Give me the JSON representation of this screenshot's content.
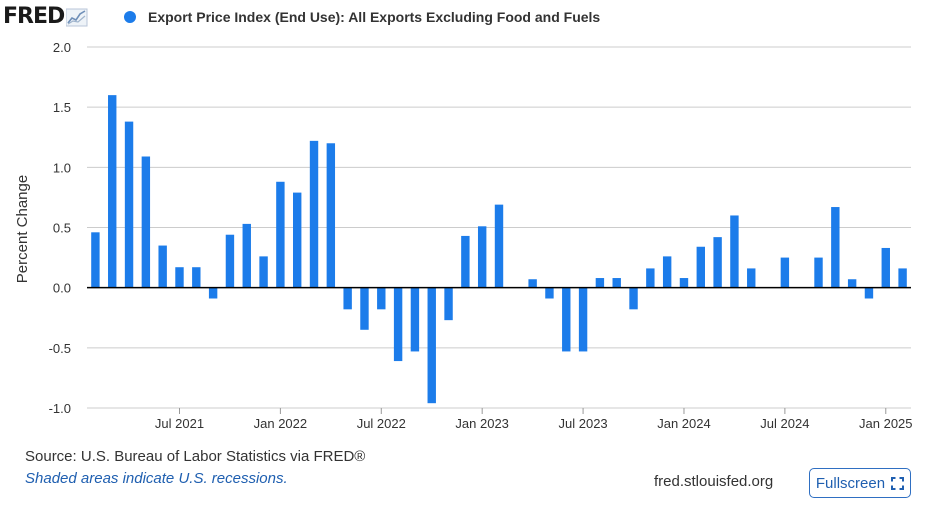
{
  "header": {
    "logo": "FRED",
    "logo_icon": "fred-trendline-icon",
    "series_label": "Export Price Index (End Use): All Exports Excluding Food and Fuels"
  },
  "colors": {
    "bar": "#1c7cea",
    "grid": "#cccccc",
    "plot_bg": "#ffffff",
    "zero_line": "#000000"
  },
  "chart_data": {
    "type": "bar",
    "title": "",
    "xlabel": "",
    "ylabel": "Percent Change",
    "ylim": [
      -1.0,
      2.0
    ],
    "yticks": [
      -1.0,
      -0.5,
      0.0,
      0.5,
      1.0,
      1.5,
      2.0
    ],
    "ytick_labels": [
      "-1.0",
      "-0.5",
      "0.0",
      "0.5",
      "1.0",
      "1.5",
      "2.0"
    ],
    "xticks": [
      {
        "label": "Jul 2021",
        "month": "2021-07"
      },
      {
        "label": "Jan 2022",
        "month": "2022-01"
      },
      {
        "label": "Jul 2022",
        "month": "2022-07"
      },
      {
        "label": "Jan 2023",
        "month": "2023-01"
      },
      {
        "label": "Jul 2023",
        "month": "2023-07"
      },
      {
        "label": "Jan 2024",
        "month": "2024-01"
      },
      {
        "label": "Jul 2024",
        "month": "2024-07"
      },
      {
        "label": "Jan 2025",
        "month": "2025-01"
      }
    ],
    "grid": true,
    "series": [
      {
        "name": "Export Price Index (End Use): All Exports Excluding Food and Fuels",
        "x": [
          "2021-02",
          "2021-03",
          "2021-04",
          "2021-05",
          "2021-06",
          "2021-07",
          "2021-08",
          "2021-09",
          "2021-10",
          "2021-11",
          "2021-12",
          "2022-01",
          "2022-02",
          "2022-03",
          "2022-04",
          "2022-05",
          "2022-06",
          "2022-07",
          "2022-08",
          "2022-09",
          "2022-10",
          "2022-11",
          "2022-12",
          "2023-01",
          "2023-02",
          "2023-03",
          "2023-04",
          "2023-05",
          "2023-06",
          "2023-07",
          "2023-08",
          "2023-09",
          "2023-10",
          "2023-11",
          "2023-12",
          "2024-01",
          "2024-02",
          "2024-03",
          "2024-04",
          "2024-05",
          "2024-06",
          "2024-07",
          "2024-08",
          "2024-09",
          "2024-10",
          "2024-11",
          "2024-12",
          "2025-01",
          "2025-02"
        ],
        "values": [
          0.46,
          1.6,
          1.38,
          1.09,
          0.35,
          0.17,
          0.17,
          -0.09,
          0.44,
          0.53,
          0.26,
          0.88,
          0.79,
          1.22,
          1.2,
          -0.18,
          -0.35,
          -0.18,
          -0.61,
          -0.53,
          -0.96,
          -0.27,
          0.43,
          0.51,
          0.69,
          0.0,
          0.07,
          -0.09,
          -0.53,
          -0.53,
          0.08,
          0.08,
          -0.18,
          0.16,
          0.26,
          0.08,
          0.34,
          0.42,
          0.6,
          0.16,
          0.0,
          0.25,
          0.0,
          0.25,
          0.67,
          0.07,
          -0.09,
          0.33,
          0.16
        ]
      }
    ]
  },
  "footer": {
    "source": "Source: U.S. Bureau of Labor Statistics via FRED®",
    "recession_note": "Shaded areas indicate U.S. recessions.",
    "site": "fred.stlouisfed.org",
    "fullscreen_label": "Fullscreen"
  }
}
